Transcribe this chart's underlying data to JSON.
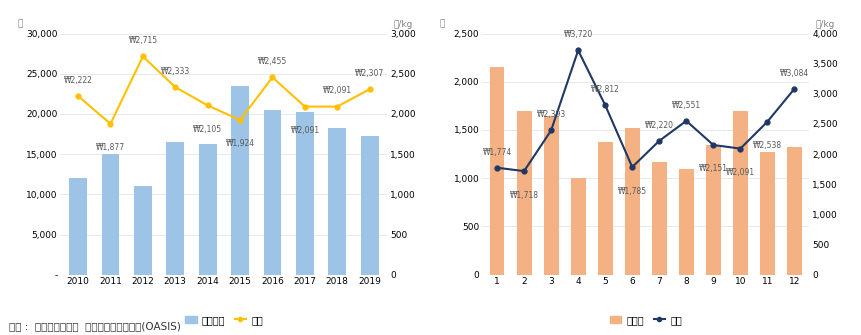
{
  "chart1": {
    "years": [
      2010,
      2011,
      2012,
      2013,
      2014,
      2015,
      2016,
      2017,
      2018,
      2019
    ],
    "volume": [
      12000,
      15000,
      11000,
      16500,
      16300,
      23500,
      20500,
      20200,
      18200,
      17200
    ],
    "price": [
      2222,
      1877,
      2715,
      2333,
      2105,
      1924,
      2455,
      2091,
      2091,
      2307
    ],
    "price_labels": [
      "₩2,222",
      "₩1,877",
      "₩2,715",
      "₩2,333",
      "₩2,105",
      "₩1,924",
      "₩2,455",
      "₩2,091",
      "₩2,091",
      "₩2,307"
    ],
    "bar_color": "#9dc3e6",
    "line_color": "#ffc000",
    "ylim_left": [
      0,
      30000
    ],
    "ylim_right": [
      0,
      3000
    ],
    "yticks_left": [
      0,
      5000,
      10000,
      15000,
      20000,
      25000,
      30000
    ],
    "yticks_right": [
      0,
      500,
      1000,
      1500,
      2000,
      2500,
      3000
    ],
    "ylabel_left": "대",
    "ylabel_right": "원/kg",
    "legend_labels": [
      "반입물량",
      "단가"
    ]
  },
  "chart2": {
    "months": [
      1,
      2,
      3,
      4,
      5,
      6,
      7,
      8,
      9,
      10,
      11,
      12
    ],
    "volume": [
      2150,
      1700,
      1650,
      1000,
      1380,
      1520,
      1170,
      1100,
      1340,
      1700,
      1270,
      1320
    ],
    "price": [
      1774,
      1718,
      2393,
      3720,
      2812,
      1785,
      2220,
      2551,
      2151,
      2091,
      2538,
      3084
    ],
    "price_labels": [
      "₩1,774",
      "₩1,718",
      "₩2,393",
      "₩3,720",
      "₩2,812",
      "₩1,785",
      "₩2,220",
      "₩2,551",
      "₩2,151",
      "₩2,091",
      "₩2,538",
      "₩3,084"
    ],
    "bar_color": "#f4b183",
    "line_color": "#203864",
    "ylim_left": [
      0,
      2500
    ],
    "ylim_right": [
      0,
      4000
    ],
    "yticks_left": [
      0,
      500,
      1000,
      1500,
      2000,
      2500
    ],
    "yticks_right": [
      0,
      500,
      1000,
      1500,
      2000,
      2500,
      3000,
      3500,
      4000
    ],
    "ylabel_left": "대",
    "ylabel_right": "원/kg",
    "legend_labels": [
      "반입량",
      "단가"
    ]
  },
  "source_text": "출첫 :  농초경제연구원  농업관측통계시스템(OASIS)",
  "background_color": "#ffffff"
}
